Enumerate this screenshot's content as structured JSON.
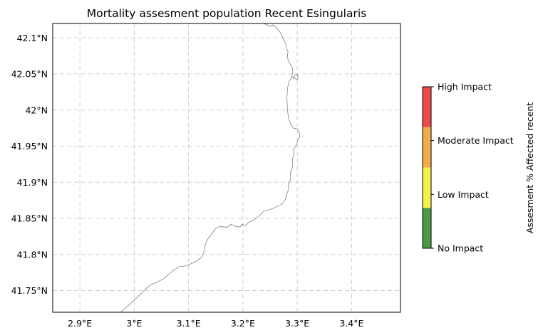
{
  "title": "Mortality assesment population Recent Esingularis",
  "map": {
    "lon_range": [
      2.85,
      3.49
    ],
    "lat_range": [
      41.72,
      42.12
    ],
    "x_ticks": [
      {
        "value": 2.9,
        "label": "2.9°E"
      },
      {
        "value": 3.0,
        "label": "3°E"
      },
      {
        "value": 3.1,
        "label": "3.1°E"
      },
      {
        "value": 3.2,
        "label": "3.2°E"
      },
      {
        "value": 3.3,
        "label": "3.3°E"
      },
      {
        "value": 3.4,
        "label": "3.4°E"
      }
    ],
    "y_ticks": [
      {
        "value": 42.1,
        "label": "42.1°N"
      },
      {
        "value": 42.05,
        "label": "42.05°N"
      },
      {
        "value": 42.0,
        "label": "42°N"
      },
      {
        "value": 41.95,
        "label": "41.95°N"
      },
      {
        "value": 41.9,
        "label": "41.9°N"
      },
      {
        "value": 41.85,
        "label": "41.85°N"
      },
      {
        "value": 41.8,
        "label": "41.8°N"
      },
      {
        "value": 41.75,
        "label": "41.75°N"
      }
    ],
    "grid": true,
    "coastline_color": "#808080",
    "coastline": [
      [
        3.238,
        42.12
      ],
      [
        3.245,
        42.118
      ],
      [
        3.25,
        42.116
      ],
      [
        3.255,
        42.118
      ],
      [
        3.262,
        42.114
      ],
      [
        3.266,
        42.11
      ],
      [
        3.27,
        42.106
      ],
      [
        3.273,
        42.101
      ],
      [
        3.276,
        42.096
      ],
      [
        3.279,
        42.092
      ],
      [
        3.28,
        42.086
      ],
      [
        3.283,
        42.081
      ],
      [
        3.282,
        42.076
      ],
      [
        3.283,
        42.069
      ],
      [
        3.287,
        42.064
      ],
      [
        3.291,
        42.058
      ],
      [
        3.292,
        42.052
      ],
      [
        3.29,
        42.047
      ],
      [
        3.293,
        42.044
      ],
      [
        3.295,
        42.048
      ],
      [
        3.3,
        42.05
      ],
      [
        3.302,
        42.045
      ],
      [
        3.3,
        42.042
      ],
      [
        3.296,
        42.044
      ],
      [
        3.29,
        42.046
      ],
      [
        3.285,
        42.04
      ],
      [
        3.282,
        42.03
      ],
      [
        3.281,
        42.016
      ],
      [
        3.282,
        42.0
      ],
      [
        3.284,
        41.989
      ],
      [
        3.288,
        41.98
      ],
      [
        3.293,
        41.975
      ],
      [
        3.3,
        41.974
      ],
      [
        3.304,
        41.968
      ],
      [
        3.305,
        41.963
      ],
      [
        3.301,
        41.958
      ],
      [
        3.298,
        41.951
      ],
      [
        3.293,
        41.946
      ],
      [
        3.294,
        41.938
      ],
      [
        3.291,
        41.932
      ],
      [
        3.292,
        41.925
      ],
      [
        3.29,
        41.917
      ],
      [
        3.287,
        41.913
      ],
      [
        3.288,
        41.905
      ],
      [
        3.284,
        41.898
      ],
      [
        3.284,
        41.89
      ],
      [
        3.281,
        41.884
      ],
      [
        3.278,
        41.876
      ],
      [
        3.272,
        41.87
      ],
      [
        3.264,
        41.867
      ],
      [
        3.256,
        41.864
      ],
      [
        3.245,
        41.861
      ],
      [
        3.238,
        41.86
      ],
      [
        3.233,
        41.856
      ],
      [
        3.226,
        41.851
      ],
      [
        3.22,
        41.848
      ],
      [
        3.21,
        41.844
      ],
      [
        3.205,
        41.84
      ],
      [
        3.198,
        41.842
      ],
      [
        3.195,
        41.838
      ],
      [
        3.186,
        41.839
      ],
      [
        3.178,
        41.842
      ],
      [
        3.172,
        41.838
      ],
      [
        3.166,
        41.838
      ],
      [
        3.158,
        41.839
      ],
      [
        3.15,
        41.836
      ],
      [
        3.143,
        41.829
      ],
      [
        3.135,
        41.821
      ],
      [
        3.131,
        41.814
      ],
      [
        3.129,
        41.806
      ],
      [
        3.125,
        41.797
      ],
      [
        3.117,
        41.792
      ],
      [
        3.11,
        41.789
      ],
      [
        3.101,
        41.786
      ],
      [
        3.093,
        41.784
      ],
      [
        3.082,
        41.783
      ],
      [
        3.072,
        41.778
      ],
      [
        3.063,
        41.772
      ],
      [
        3.053,
        41.766
      ],
      [
        3.043,
        41.762
      ],
      [
        3.033,
        41.759
      ],
      [
        3.022,
        41.753
      ],
      [
        3.013,
        41.746
      ],
      [
        3.003,
        41.739
      ],
      [
        2.993,
        41.732
      ],
      [
        2.984,
        41.726
      ],
      [
        2.975,
        41.72
      ]
    ]
  },
  "colorbar": {
    "label": "Assesment % Affected recent",
    "segments": [
      {
        "name": "No Impact",
        "color": "#4a9a47"
      },
      {
        "name": "Low Impact",
        "color": "#f2f24a"
      },
      {
        "name": "Moderate Impact",
        "color": "#f2ad4a"
      },
      {
        "name": "High Impact",
        "color": "#f04b4b"
      }
    ],
    "tick_labels": [
      "No Impact",
      "Low Impact",
      "Moderate Impact",
      "High Impact"
    ]
  }
}
